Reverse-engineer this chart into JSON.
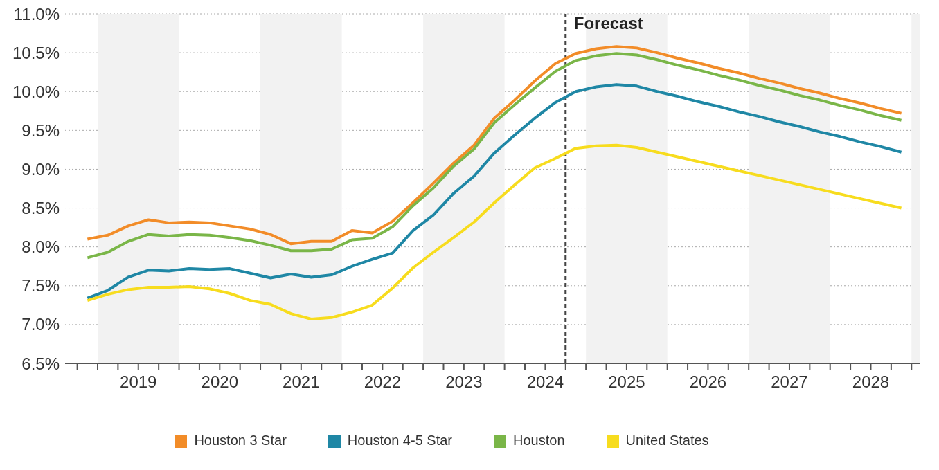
{
  "chart_data": {
    "type": "line",
    "x": [
      2018.875,
      2019.125,
      2019.375,
      2019.625,
      2019.875,
      2020.125,
      2020.375,
      2020.625,
      2020.875,
      2021.125,
      2021.375,
      2021.625,
      2021.875,
      2022.125,
      2022.375,
      2022.625,
      2022.875,
      2023.125,
      2023.375,
      2023.625,
      2023.875,
      2024.125,
      2024.375,
      2024.625,
      2024.875,
      2025.125,
      2025.375,
      2025.625,
      2025.875,
      2026.125,
      2026.375,
      2026.625,
      2026.875,
      2027.125,
      2027.375,
      2027.625,
      2027.875,
      2028.125,
      2028.375,
      2028.625,
      2028.875
    ],
    "series": [
      {
        "name": "Houston 3 Star",
        "color": "#f28c28",
        "values": [
          8.1,
          8.15,
          8.27,
          8.35,
          8.31,
          8.32,
          8.31,
          8.27,
          8.23,
          8.16,
          8.04,
          8.07,
          8.07,
          8.21,
          8.18,
          8.33,
          8.57,
          8.82,
          9.08,
          9.31,
          9.66,
          9.89,
          10.14,
          10.36,
          10.49,
          10.55,
          10.58,
          10.56,
          10.5,
          10.43,
          10.37,
          10.3,
          10.24,
          10.17,
          10.11,
          10.04,
          9.98,
          9.91,
          9.85,
          9.78,
          9.72
        ]
      },
      {
        "name": "Houston 4-5 Star",
        "color": "#1f87a5",
        "values": [
          7.34,
          7.44,
          7.61,
          7.7,
          7.69,
          7.72,
          7.71,
          7.72,
          7.66,
          7.6,
          7.65,
          7.61,
          7.64,
          7.75,
          7.84,
          7.92,
          8.21,
          8.41,
          8.69,
          8.91,
          9.21,
          9.44,
          9.66,
          9.86,
          10.0,
          10.06,
          10.09,
          10.07,
          10.0,
          9.94,
          9.87,
          9.81,
          9.74,
          9.68,
          9.61,
          9.55,
          9.48,
          9.42,
          9.35,
          9.29,
          9.22
        ]
      },
      {
        "name": "Houston",
        "color": "#7ab648",
        "values": [
          7.86,
          7.93,
          8.07,
          8.16,
          8.14,
          8.16,
          8.15,
          8.12,
          8.08,
          8.02,
          7.95,
          7.95,
          7.97,
          8.09,
          8.11,
          8.26,
          8.53,
          8.76,
          9.04,
          9.26,
          9.6,
          9.83,
          10.05,
          10.26,
          10.4,
          10.46,
          10.49,
          10.47,
          10.41,
          10.34,
          10.28,
          10.21,
          10.15,
          10.08,
          10.02,
          9.95,
          9.89,
          9.82,
          9.76,
          9.69,
          9.63
        ]
      },
      {
        "name": "United States",
        "color": "#f7dc1e",
        "values": [
          7.31,
          7.39,
          7.45,
          7.48,
          7.48,
          7.49,
          7.46,
          7.4,
          7.31,
          7.26,
          7.14,
          7.07,
          7.09,
          7.16,
          7.25,
          7.47,
          7.73,
          7.93,
          8.12,
          8.32,
          8.57,
          8.8,
          9.02,
          9.14,
          9.27,
          9.3,
          9.31,
          9.28,
          9.22,
          9.16,
          9.1,
          9.04,
          8.98,
          8.92,
          8.86,
          8.8,
          8.74,
          8.68,
          8.62,
          8.56,
          8.5
        ]
      }
    ],
    "xlim": [
      2018.6,
      2029.1
    ],
    "xticks": [
      {
        "value": 2018.75,
        "label": null
      },
      {
        "value": 2019,
        "label": null
      },
      {
        "value": 2019.25,
        "label": null
      },
      {
        "value": 2019.5,
        "label": "2019"
      },
      {
        "value": 2019.75,
        "label": null
      },
      {
        "value": 2020,
        "label": null
      },
      {
        "value": 2020.25,
        "label": null
      },
      {
        "value": 2020.5,
        "label": "2020"
      },
      {
        "value": 2020.75,
        "label": null
      },
      {
        "value": 2021,
        "label": null
      },
      {
        "value": 2021.25,
        "label": null
      },
      {
        "value": 2021.5,
        "label": "2021"
      },
      {
        "value": 2021.75,
        "label": null
      },
      {
        "value": 2022,
        "label": null
      },
      {
        "value": 2022.25,
        "label": null
      },
      {
        "value": 2022.5,
        "label": "2022"
      },
      {
        "value": 2022.75,
        "label": null
      },
      {
        "value": 2023,
        "label": null
      },
      {
        "value": 2023.25,
        "label": null
      },
      {
        "value": 2023.5,
        "label": "2023"
      },
      {
        "value": 2023.75,
        "label": null
      },
      {
        "value": 2024,
        "label": null
      },
      {
        "value": 2024.25,
        "label": null
      },
      {
        "value": 2024.5,
        "label": "2024"
      },
      {
        "value": 2024.75,
        "label": null
      },
      {
        "value": 2025,
        "label": null
      },
      {
        "value": 2025.25,
        "label": null
      },
      {
        "value": 2025.5,
        "label": "2025"
      },
      {
        "value": 2025.75,
        "label": null
      },
      {
        "value": 2026,
        "label": null
      },
      {
        "value": 2026.25,
        "label": null
      },
      {
        "value": 2026.5,
        "label": "2026"
      },
      {
        "value": 2026.75,
        "label": null
      },
      {
        "value": 2027,
        "label": null
      },
      {
        "value": 2027.25,
        "label": null
      },
      {
        "value": 2027.5,
        "label": "2027"
      },
      {
        "value": 2027.75,
        "label": null
      },
      {
        "value": 2028,
        "label": null
      },
      {
        "value": 2028.25,
        "label": null
      },
      {
        "value": 2028.5,
        "label": "2028"
      },
      {
        "value": 2028.75,
        "label": null
      },
      {
        "value": 2029,
        "label": null
      }
    ],
    "ylim": [
      6.5,
      11.0
    ],
    "yticks": [
      {
        "value": 6.5,
        "label": "6.5%"
      },
      {
        "value": 7.0,
        "label": "7.0%"
      },
      {
        "value": 7.5,
        "label": "7.5%"
      },
      {
        "value": 8.0,
        "label": "8.0%"
      },
      {
        "value": 8.5,
        "label": "8.5%"
      },
      {
        "value": 9.0,
        "label": "9.0%"
      },
      {
        "value": 9.5,
        "label": "9.5%"
      },
      {
        "value": 10.0,
        "label": "10.0%"
      },
      {
        "value": 10.5,
        "label": "10.5%"
      },
      {
        "value": 11.0,
        "label": "11.0%"
      }
    ],
    "bands": [
      {
        "axis": "x",
        "from": 2019,
        "to": 2020,
        "color": "#f2f2f2"
      },
      {
        "axis": "x",
        "from": 2021,
        "to": 2022,
        "color": "#f2f2f2"
      },
      {
        "axis": "x",
        "from": 2023,
        "to": 2024,
        "color": "#f2f2f2"
      },
      {
        "axis": "x",
        "from": 2025,
        "to": 2026,
        "color": "#f2f2f2"
      },
      {
        "axis": "x",
        "from": 2027,
        "to": 2028,
        "color": "#f2f2f2"
      },
      {
        "axis": "x",
        "from": 2029,
        "to": 2029.1,
        "color": "#f2f2f2"
      }
    ],
    "ref_lines": [
      {
        "axis": "x",
        "value": 2024.75,
        "label": "Forecast",
        "color": "#444444",
        "line_style": "dashed"
      }
    ],
    "grid": "y",
    "legend": "bottom",
    "marker": "none",
    "line_style": "solid"
  }
}
